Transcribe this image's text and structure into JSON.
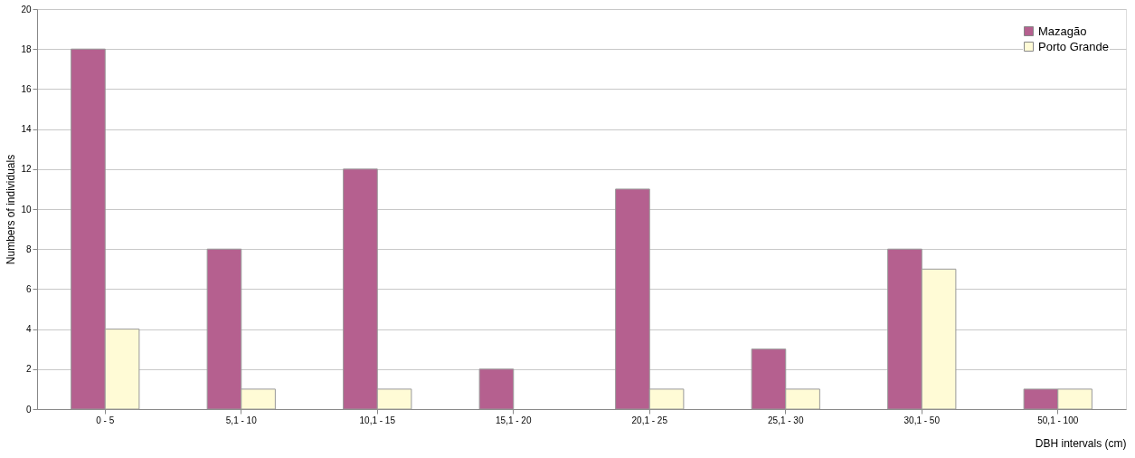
{
  "chart_data": {
    "type": "bar",
    "xlabel": "DBH intervals (cm)",
    "ylabel": "Numbers of individuals",
    "categories": [
      "0 - 5",
      "5,1 - 10",
      "10,1 - 15",
      "15,1 - 20",
      "20,1 - 25",
      "25,1 - 30",
      "30,1 - 50",
      "50,1 - 100"
    ],
    "series": [
      {
        "name": "Mazagão",
        "color": "#b5608f",
        "values": [
          18,
          8,
          12,
          2,
          11,
          3,
          8,
          1
        ]
      },
      {
        "name": "Porto Grande",
        "color": "#fffbd6",
        "values": [
          4,
          1,
          1,
          null,
          1,
          1,
          7,
          1
        ]
      }
    ],
    "ylim": [
      0,
      20
    ],
    "yticks": [
      0,
      2,
      4,
      6,
      8,
      10,
      12,
      14,
      16,
      18,
      20
    ],
    "grid": "y",
    "legend": "top right"
  }
}
